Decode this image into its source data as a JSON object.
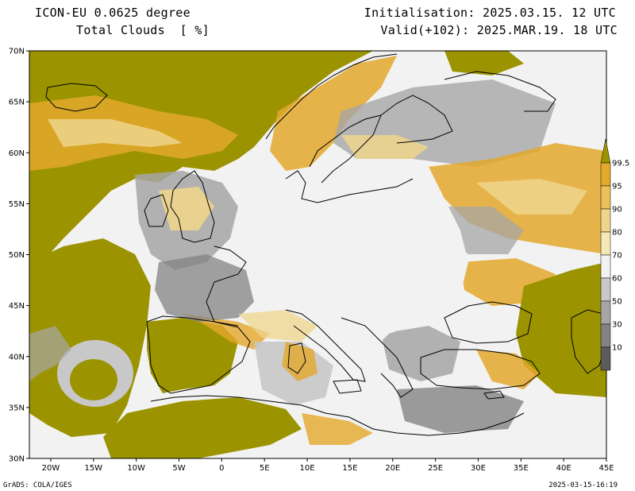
{
  "header": {
    "model": "ICON-EU 0.0625 degree",
    "variable": "Total Clouds  [ %]",
    "init": "Initialisation: 2025.03.15. 12 UTC",
    "valid": "Valid(+102): 2025.MAR.19. 18 UTC"
  },
  "map": {
    "lat_labels": [
      "70N",
      "65N",
      "60N",
      "55N",
      "50N",
      "45N",
      "40N",
      "35N",
      "30N"
    ],
    "lon_labels": [
      "20W",
      "15W",
      "10W",
      "5W",
      "0",
      "5E",
      "10E",
      "15E",
      "20E",
      "25E",
      "30E",
      "35E",
      "40E",
      "45E"
    ]
  },
  "legend": {
    "labels": [
      "99.5",
      "95",
      "90",
      "80",
      "70",
      "60",
      "50",
      "30",
      "10"
    ],
    "colors": [
      "#9b9400",
      "#e3a82c",
      "#ecc15c",
      "#efd58c",
      "#f3e9b8",
      "#f2f2f2",
      "#c8c8c8",
      "#a6a6a6",
      "#838383",
      "#5c5c5c"
    ]
  },
  "footer": {
    "left": "GrADS: COLA/IGES",
    "right": "2025-03-15-16:19"
  }
}
